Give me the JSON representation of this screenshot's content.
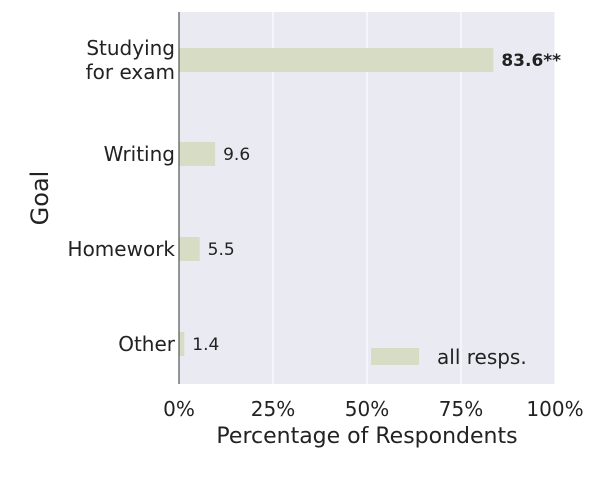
{
  "chart_data": {
    "type": "bar",
    "orientation": "horizontal",
    "categories": [
      "Studying for exam",
      "Writing",
      "Homework",
      "Other"
    ],
    "category_lines": [
      [
        "Studying",
        "for exam"
      ],
      [
        "Writing"
      ],
      [
        "Homework"
      ],
      [
        "Other"
      ]
    ],
    "series": [
      {
        "name": "all resps.",
        "values": [
          83.6,
          9.6,
          5.5,
          1.4
        ],
        "value_labels": [
          "83.6**",
          "9.6",
          "5.5",
          "1.4"
        ],
        "bold_labels": [
          true,
          false,
          false,
          false
        ],
        "color": "#d7ddc4"
      }
    ],
    "xlabel": "Percentage of Respondents",
    "ylabel": "Goal",
    "xlim": [
      0,
      100
    ],
    "xticks": [
      0,
      25,
      50,
      75,
      100
    ],
    "xtick_labels": [
      "0%",
      "25%",
      "50%",
      "75%",
      "100%"
    ],
    "grid": "vertical",
    "legend_position": "lower-right",
    "background": "#eaeaf2",
    "grid_color": "#ffffff",
    "axis_color": "#555555"
  }
}
